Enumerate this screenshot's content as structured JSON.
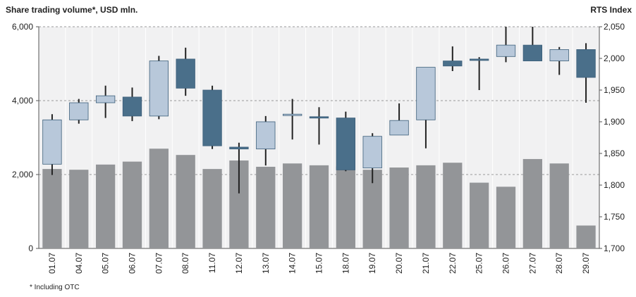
{
  "chart_data": {
    "type": "combo",
    "title": "Share trading volume*, USD mln.",
    "y2_title": "RTS Index",
    "footnote": "* Including OTC",
    "categories": [
      "01.07",
      "04.07",
      "05.07",
      "06.07",
      "07.07",
      "08.07",
      "11.07",
      "12.07",
      "13.07",
      "14.07",
      "15.07",
      "18.07",
      "19.07",
      "20.07",
      "21.07",
      "22.07",
      "25.07",
      "26.07",
      "27.07",
      "28.07",
      "29.07"
    ],
    "ylim": [
      0,
      6000
    ],
    "yticks": [
      0,
      {
        "value": 2000,
        "label": "2,000"
      },
      {
        "value": 4000,
        "label": "4,000"
      },
      {
        "value": 6000,
        "label": "6,000"
      }
    ],
    "y2lim": [
      1700,
      2050
    ],
    "y2ticks": [
      {
        "value": 1700,
        "label": "1,700"
      },
      {
        "value": 1750,
        "label": "1,750"
      },
      {
        "value": 1800,
        "label": "1,800"
      },
      {
        "value": 1850,
        "label": "1,850"
      },
      {
        "value": 1900,
        "label": "1,900"
      },
      {
        "value": 1950,
        "label": "1,950"
      },
      {
        "value": 2000,
        "label": "2,000"
      },
      {
        "value": 2050,
        "label": "2,050"
      }
    ],
    "grid": true,
    "series": [
      {
        "type": "bar",
        "color": "#939598",
        "values": [
          2150,
          2130,
          2270,
          2350,
          2700,
          2530,
          2150,
          2380,
          2210,
          2300,
          2250,
          2220,
          2130,
          2190,
          2250,
          2320,
          1780,
          1670,
          2420,
          2300,
          620
        ]
      },
      {
        "type": "candlestick",
        "axis": "y2",
        "up_color": "#b8c8da",
        "down_color": "#4a6f8a",
        "edge_color": "#3d5f7a",
        "open": [
          1833,
          1903,
          1930,
          1939,
          1909,
          1999,
          1950,
          1860,
          1857,
          1911,
          1908,
          1906,
          1827,
          1879,
          1903,
          1996,
          1999,
          2003,
          2021,
          1996,
          2014
        ],
        "high": [
          1912,
          1936,
          1957,
          1954,
          2004,
          2017,
          1957,
          1867,
          1909,
          1936,
          1923,
          1916,
          1882,
          1929,
          1986,
          2019,
          2002,
          2050,
          2050,
          2018,
          2024
        ],
        "low": [
          1816,
          1897,
          1906,
          1901,
          1904,
          1941,
          1857,
          1787,
          1831,
          1872,
          1864,
          1822,
          1803,
          1879,
          1858,
          1980,
          1950,
          1994,
          1996,
          1974,
          1930
        ],
        "close": [
          1903,
          1930,
          1941,
          1909,
          1996,
          1953,
          1862,
          1857,
          1900,
          1912,
          1907,
          1824,
          1877,
          1902,
          1986,
          1988,
          1998,
          2021,
          1996,
          2014,
          1970
        ]
      }
    ]
  }
}
